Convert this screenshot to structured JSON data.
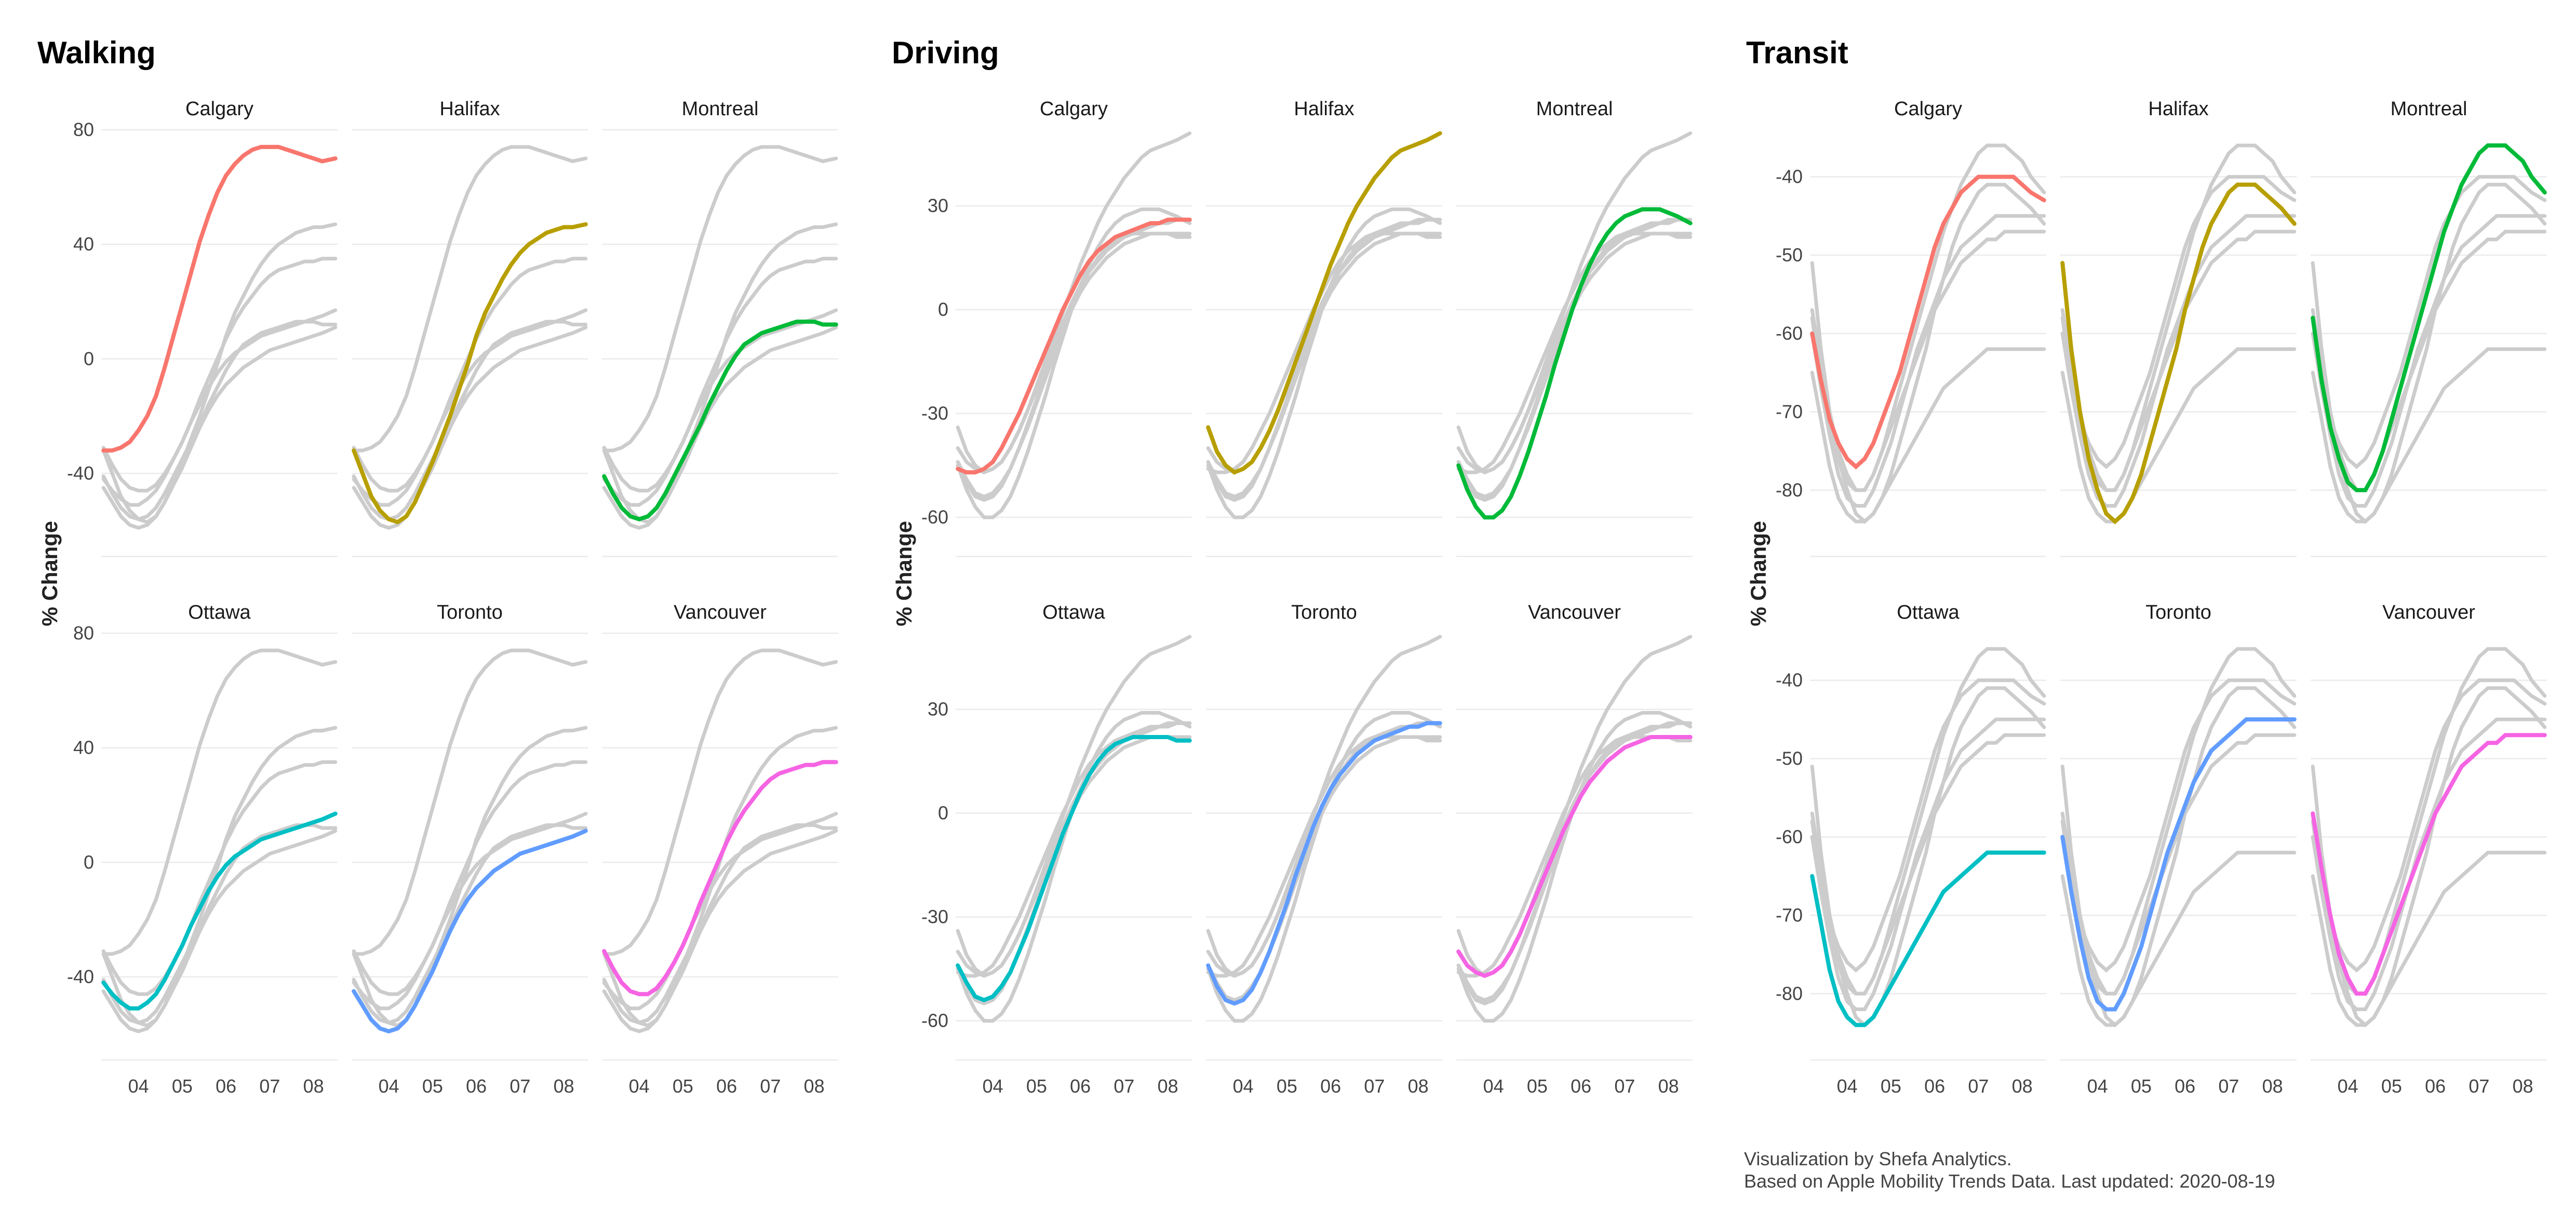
{
  "caption": {
    "line1": "Visualization by Shefa Analytics.",
    "line2": "Based on Apple Mobility Trends Data. Last updated: 2020-08-19"
  },
  "chart_data": [
    {
      "type": "line",
      "title": "Walking",
      "ylabel": "% Change",
      "x_ticks": [
        "04",
        "05",
        "06",
        "07",
        "08"
      ],
      "y_ticks": [
        -40,
        0,
        40,
        80
      ],
      "ylim": [
        -65,
        80
      ],
      "x": [
        3.2,
        3.4,
        3.6,
        3.8,
        4.0,
        4.2,
        4.4,
        4.6,
        4.8,
        5.0,
        5.2,
        5.4,
        5.6,
        5.8,
        6.0,
        6.2,
        6.4,
        6.6,
        6.8,
        7.0,
        7.2,
        7.4,
        7.6,
        7.8,
        8.0,
        8.2,
        8.5
      ],
      "series": [
        {
          "name": "Calgary",
          "color": "#F8766D",
          "values": [
            -32,
            -32,
            -31,
            -29,
            -25,
            -20,
            -13,
            -3,
            8,
            19,
            30,
            41,
            50,
            58,
            64,
            68,
            71,
            73,
            74,
            74,
            74,
            73,
            72,
            71,
            70,
            69,
            70
          ]
        },
        {
          "name": "Halifax",
          "color": "#B79F00",
          "values": [
            -32,
            -40,
            -48,
            -53,
            -56,
            -57,
            -55,
            -50,
            -43,
            -36,
            -28,
            -20,
            -11,
            -2,
            8,
            16,
            22,
            28,
            33,
            37,
            40,
            42,
            44,
            45,
            46,
            46,
            47
          ]
        },
        {
          "name": "Montreal",
          "color": "#00BA38",
          "values": [
            -41,
            -47,
            -52,
            -55,
            -56,
            -55,
            -52,
            -47,
            -41,
            -35,
            -29,
            -23,
            -16,
            -10,
            -4,
            1,
            5,
            7,
            9,
            10,
            11,
            12,
            13,
            13,
            13,
            12,
            12
          ]
        },
        {
          "name": "Ottawa",
          "color": "#00BFC4",
          "values": [
            -42,
            -46,
            -49,
            -51,
            -51,
            -49,
            -46,
            -41,
            -35,
            -29,
            -22,
            -16,
            -10,
            -5,
            -1,
            2,
            4,
            6,
            8,
            9,
            10,
            11,
            12,
            13,
            14,
            15,
            17
          ]
        },
        {
          "name": "Toronto",
          "color": "#619CFF",
          "values": [
            -45,
            -50,
            -55,
            -58,
            -59,
            -58,
            -55,
            -50,
            -44,
            -38,
            -31,
            -24,
            -18,
            -13,
            -9,
            -6,
            -3,
            -1,
            1,
            3,
            4,
            5,
            6,
            7,
            8,
            9,
            11
          ]
        },
        {
          "name": "Vancouver",
          "color": "#F564E3",
          "values": [
            -31,
            -37,
            -42,
            -45,
            -46,
            -46,
            -44,
            -40,
            -35,
            -29,
            -22,
            -14,
            -7,
            0,
            7,
            13,
            18,
            22,
            26,
            29,
            31,
            32,
            33,
            34,
            34,
            35,
            35
          ]
        }
      ]
    },
    {
      "type": "line",
      "title": "Driving",
      "ylabel": "% Change",
      "x_ticks": [
        "04",
        "05",
        "06",
        "07",
        "08"
      ],
      "y_ticks": [
        -60,
        -30,
        0,
        30
      ],
      "ylim": [
        -68,
        52
      ],
      "x": [
        3.2,
        3.4,
        3.6,
        3.8,
        4.0,
        4.2,
        4.4,
        4.6,
        4.8,
        5.0,
        5.2,
        5.4,
        5.6,
        5.8,
        6.0,
        6.2,
        6.4,
        6.6,
        6.8,
        7.0,
        7.2,
        7.4,
        7.6,
        7.8,
        8.0,
        8.2,
        8.5
      ],
      "series": [
        {
          "name": "Calgary",
          "color": "#F8766D",
          "values": [
            -46,
            -47,
            -47,
            -46,
            -44,
            -40,
            -35,
            -30,
            -24,
            -18,
            -12,
            -6,
            0,
            5,
            10,
            14,
            17,
            19,
            21,
            22,
            23,
            24,
            25,
            25,
            26,
            26,
            26
          ]
        },
        {
          "name": "Halifax",
          "color": "#B79F00",
          "values": [
            -34,
            -41,
            -45,
            -47,
            -46,
            -44,
            -40,
            -35,
            -29,
            -22,
            -15,
            -8,
            -1,
            6,
            13,
            19,
            25,
            30,
            34,
            38,
            41,
            44,
            46,
            47,
            48,
            49,
            51
          ]
        },
        {
          "name": "Montreal",
          "color": "#00BA38",
          "values": [
            -45,
            -52,
            -57,
            -60,
            -60,
            -58,
            -54,
            -48,
            -41,
            -33,
            -25,
            -16,
            -8,
            0,
            7,
            13,
            18,
            22,
            25,
            27,
            28,
            29,
            29,
            29,
            28,
            27,
            25
          ]
        },
        {
          "name": "Ottawa",
          "color": "#00BFC4",
          "values": [
            -44,
            -49,
            -53,
            -54,
            -53,
            -50,
            -46,
            -40,
            -34,
            -27,
            -20,
            -13,
            -6,
            0,
            6,
            11,
            15,
            18,
            20,
            21,
            22,
            22,
            22,
            22,
            22,
            21,
            21
          ]
        },
        {
          "name": "Toronto",
          "color": "#619CFF",
          "values": [
            -44,
            -50,
            -54,
            -55,
            -54,
            -51,
            -46,
            -40,
            -33,
            -26,
            -18,
            -11,
            -4,
            2,
            7,
            11,
            14,
            17,
            19,
            21,
            22,
            23,
            24,
            25,
            25,
            26,
            26
          ]
        },
        {
          "name": "Vancouver",
          "color": "#F564E3",
          "values": [
            -40,
            -44,
            -46,
            -47,
            -46,
            -44,
            -40,
            -35,
            -29,
            -23,
            -17,
            -11,
            -5,
            0,
            5,
            9,
            12,
            15,
            17,
            19,
            20,
            21,
            22,
            22,
            22,
            22,
            22
          ]
        }
      ]
    },
    {
      "type": "line",
      "title": "Transit",
      "ylabel": "% Change",
      "x_ticks": [
        "04",
        "05",
        "06",
        "07",
        "08"
      ],
      "y_ticks": [
        -80,
        -70,
        -60,
        -50,
        -40
      ],
      "ylim": [
        -87,
        -34
      ],
      "x": [
        3.2,
        3.4,
        3.6,
        3.8,
        4.0,
        4.2,
        4.4,
        4.6,
        4.8,
        5.0,
        5.2,
        5.4,
        5.6,
        5.8,
        6.0,
        6.2,
        6.4,
        6.6,
        6.8,
        7.0,
        7.2,
        7.4,
        7.6,
        7.8,
        8.0,
        8.2,
        8.5
      ],
      "series": [
        {
          "name": "Calgary",
          "color": "#F8766D",
          "values": [
            -60,
            -66,
            -71,
            -74,
            -76,
            -77,
            -76,
            -74,
            -71,
            -68,
            -65,
            -61,
            -57,
            -53,
            -49,
            -46,
            -44,
            -42,
            -41,
            -40,
            -40,
            -40,
            -40,
            -40,
            -41,
            -42,
            -43
          ]
        },
        {
          "name": "Halifax",
          "color": "#B79F00",
          "values": [
            -51,
            -62,
            -70,
            -76,
            -80,
            -83,
            -84,
            -83,
            -81,
            -78,
            -74,
            -70,
            -66,
            -62,
            -57,
            -53,
            -49,
            -46,
            -44,
            -42,
            -41,
            -41,
            -41,
            -42,
            -43,
            -44,
            -46
          ]
        },
        {
          "name": "Montreal",
          "color": "#00BA38",
          "values": [
            -58,
            -66,
            -72,
            -76,
            -79,
            -80,
            -80,
            -78,
            -75,
            -71,
            -67,
            -63,
            -59,
            -55,
            -51,
            -47,
            -44,
            -41,
            -39,
            -37,
            -36,
            -36,
            -36,
            -37,
            -38,
            -40,
            -42
          ]
        },
        {
          "name": "Ottawa",
          "color": "#00BFC4",
          "values": [
            -65,
            -71,
            -77,
            -81,
            -83,
            -84,
            -84,
            -83,
            -81,
            -79,
            -77,
            -75,
            -73,
            -71,
            -69,
            -67,
            -66,
            -65,
            -64,
            -63,
            -62,
            -62,
            -62,
            -62,
            -62,
            -62,
            -62
          ]
        },
        {
          "name": "Toronto",
          "color": "#619CFF",
          "values": [
            -60,
            -67,
            -73,
            -78,
            -81,
            -82,
            -82,
            -80,
            -77,
            -74,
            -70,
            -66,
            -62,
            -59,
            -56,
            -53,
            -51,
            -49,
            -48,
            -47,
            -46,
            -45,
            -45,
            -45,
            -45,
            -45,
            -45
          ]
        },
        {
          "name": "Vancouver",
          "color": "#F564E3",
          "values": [
            -57,
            -64,
            -70,
            -75,
            -78,
            -80,
            -80,
            -78,
            -75,
            -72,
            -69,
            -66,
            -63,
            -60,
            -57,
            -55,
            -53,
            -51,
            -50,
            -49,
            -48,
            -48,
            -47,
            -47,
            -47,
            -47,
            -47
          ]
        }
      ]
    }
  ]
}
